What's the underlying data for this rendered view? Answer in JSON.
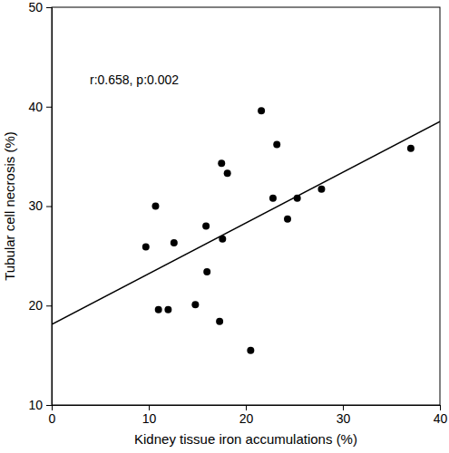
{
  "chart_data": {
    "type": "scatter",
    "x_label": "Kidney tissue iron accumulations (%)",
    "y_label": "Tubular cell necrosis (%)",
    "annotations": [
      "r:0.658, p:0.002"
    ],
    "x": [
      9.7,
      10.7,
      11.0,
      12.0,
      12.6,
      14.8,
      15.9,
      16.0,
      17.3,
      17.5,
      17.6,
      18.1,
      20.5,
      21.6,
      22.8,
      23.2,
      24.3,
      25.3,
      27.8,
      37.0
    ],
    "values": [
      25.9,
      30.0,
      19.6,
      19.6,
      26.3,
      20.1,
      28.0,
      23.4,
      18.4,
      34.3,
      26.7,
      33.3,
      15.5,
      39.6,
      30.8,
      36.2,
      28.7,
      30.8,
      31.7,
      35.8
    ],
    "color": "#000000",
    "marker": "circle",
    "fit_line": {
      "x": [
        0,
        40
      ],
      "values": [
        18.1,
        38.5
      ]
    },
    "xlim": [
      0,
      40
    ],
    "xticks": [
      0,
      10,
      20,
      30,
      40
    ],
    "ylim": [
      10,
      50
    ],
    "yticks": [
      10,
      20,
      30,
      40,
      50
    ],
    "grid": false
  }
}
